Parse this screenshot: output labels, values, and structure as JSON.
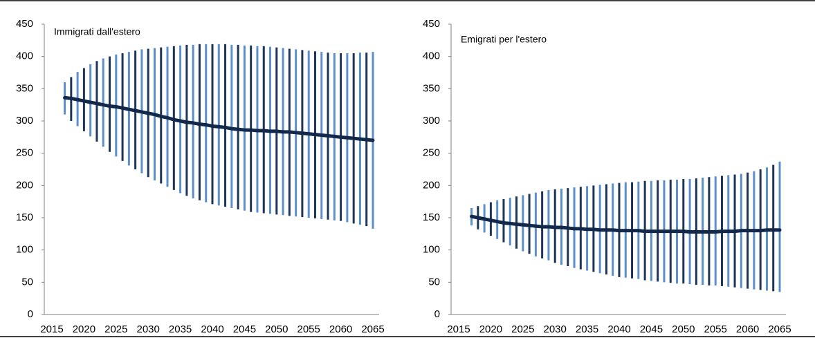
{
  "chart_data": [
    {
      "type": "range",
      "title": "Immigrati dall'estero",
      "x": [
        2017,
        2018,
        2019,
        2020,
        2021,
        2022,
        2023,
        2024,
        2025,
        2026,
        2027,
        2028,
        2029,
        2030,
        2031,
        2032,
        2033,
        2034,
        2035,
        2036,
        2037,
        2038,
        2039,
        2040,
        2041,
        2042,
        2043,
        2044,
        2045,
        2046,
        2047,
        2048,
        2049,
        2050,
        2051,
        2052,
        2053,
        2054,
        2055,
        2056,
        2057,
        2058,
        2059,
        2060,
        2061,
        2062,
        2063,
        2064,
        2065
      ],
      "values": [
        336,
        335,
        333,
        331,
        329,
        327,
        325,
        323,
        322,
        320,
        318,
        316,
        314,
        312,
        310,
        307,
        305,
        302,
        300,
        298,
        297,
        295,
        294,
        292,
        291,
        290,
        288,
        287,
        286,
        286,
        285,
        285,
        284,
        284,
        283,
        283,
        282,
        281,
        280,
        279,
        278,
        277,
        276,
        275,
        274,
        273,
        272,
        271,
        270
      ],
      "high": [
        360,
        368,
        376,
        382,
        388,
        393,
        397,
        400,
        403,
        405,
        407,
        409,
        411,
        412,
        413,
        414,
        415,
        416,
        417,
        418,
        418,
        419,
        419,
        419,
        419,
        419,
        418,
        418,
        417,
        417,
        416,
        416,
        415,
        414,
        413,
        412,
        411,
        410,
        409,
        408,
        407,
        406,
        405,
        405,
        405,
        405,
        406,
        406,
        407
      ],
      "low": [
        310,
        300,
        292,
        284,
        276,
        268,
        260,
        252,
        245,
        238,
        231,
        225,
        219,
        213,
        208,
        203,
        198,
        193,
        188,
        184,
        180,
        177,
        174,
        171,
        169,
        167,
        165,
        163,
        161,
        159,
        158,
        157,
        156,
        155,
        154,
        153,
        152,
        151,
        150,
        149,
        148,
        147,
        146,
        145,
        143,
        141,
        139,
        137,
        133
      ],
      "line_color": "#13294b",
      "bar_colors": [
        "#5b8fcb",
        "#1d3557"
      ],
      "xlim": [
        2015,
        2065
      ],
      "xticks": [
        2015,
        2020,
        2025,
        2030,
        2035,
        2040,
        2045,
        2050,
        2055,
        2060,
        2065
      ],
      "ylim": [
        0,
        450
      ],
      "yticks": [
        0,
        50,
        100,
        150,
        200,
        250,
        300,
        350,
        400,
        450
      ]
    },
    {
      "type": "range",
      "title": "Emigrati per l'estero",
      "x": [
        2017,
        2018,
        2019,
        2020,
        2021,
        2022,
        2023,
        2024,
        2025,
        2026,
        2027,
        2028,
        2029,
        2030,
        2031,
        2032,
        2033,
        2034,
        2035,
        2036,
        2037,
        2038,
        2039,
        2040,
        2041,
        2042,
        2043,
        2044,
        2045,
        2046,
        2047,
        2048,
        2049,
        2050,
        2051,
        2052,
        2053,
        2054,
        2055,
        2056,
        2057,
        2058,
        2059,
        2060,
        2061,
        2062,
        2063,
        2064,
        2065
      ],
      "values": [
        152,
        150,
        148,
        146,
        144,
        142,
        141,
        140,
        139,
        138,
        137,
        136,
        136,
        135,
        135,
        134,
        133,
        133,
        132,
        132,
        131,
        131,
        131,
        130,
        130,
        130,
        130,
        129,
        129,
        129,
        129,
        129,
        129,
        129,
        128,
        128,
        128,
        128,
        128,
        129,
        129,
        129,
        130,
        130,
        130,
        130,
        131,
        131,
        131
      ],
      "high": [
        165,
        168,
        171,
        174,
        177,
        179,
        181,
        183,
        185,
        187,
        189,
        191,
        193,
        194,
        195,
        196,
        197,
        198,
        199,
        200,
        201,
        202,
        203,
        204,
        205,
        205,
        206,
        207,
        207,
        208,
        208,
        209,
        209,
        210,
        210,
        211,
        212,
        213,
        214,
        215,
        216,
        217,
        218,
        220,
        222,
        225,
        228,
        232,
        237
      ],
      "low": [
        138,
        132,
        127,
        122,
        117,
        112,
        107,
        102,
        98,
        94,
        90,
        87,
        84,
        80,
        77,
        75,
        72,
        70,
        68,
        66,
        64,
        62,
        60,
        58,
        57,
        56,
        55,
        53,
        52,
        51,
        50,
        49,
        48,
        48,
        47,
        46,
        46,
        45,
        45,
        44,
        43,
        42,
        41,
        40,
        39,
        38,
        37,
        36,
        35
      ],
      "line_color": "#13294b",
      "bar_colors": [
        "#5b8fcb",
        "#1d3557"
      ],
      "xlim": [
        2015,
        2065
      ],
      "xticks": [
        2015,
        2020,
        2025,
        2030,
        2035,
        2040,
        2045,
        2050,
        2055,
        2060,
        2065
      ],
      "ylim": [
        0,
        450
      ],
      "yticks": [
        0,
        50,
        100,
        150,
        200,
        250,
        300,
        350,
        400,
        450
      ]
    }
  ]
}
